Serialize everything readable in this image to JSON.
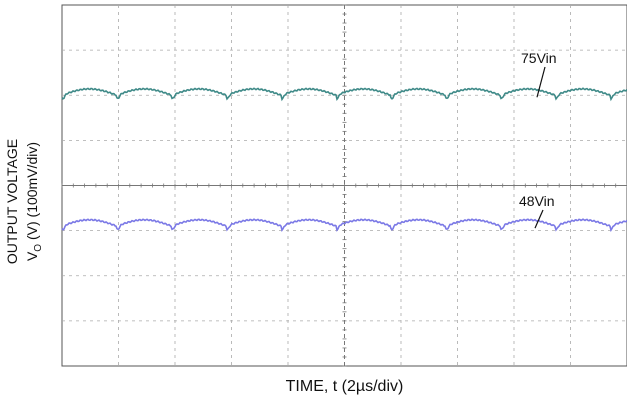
{
  "chart_data": {
    "type": "line",
    "xlabel": "TIME, t (2µs/div)",
    "ylabel_line1": "OUTPUT VOLTAGE",
    "ylabel_line2": "V",
    "ylabel_sub": "O",
    "ylabel_line2_rest": " (V) (100mV/div)",
    "x_divisions": 10,
    "y_divisions": 8,
    "grid": true,
    "series": [
      {
        "name": "75Vin",
        "color": "#3f8a88",
        "level_div": 6.0,
        "ripple_period_div": 0.97,
        "ripple_amplitude_div": 0.14
      },
      {
        "name": "48Vin",
        "color": "#7b79e6",
        "level_div": 3.1,
        "ripple_period_div": 0.97,
        "ripple_amplitude_div": 0.14
      }
    ]
  }
}
